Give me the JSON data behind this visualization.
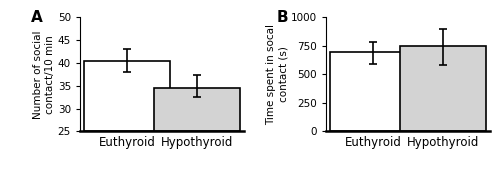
{
  "panel_A": {
    "label": "A",
    "categories": [
      "Euthyroid",
      "Hypothyroid"
    ],
    "values": [
      40.5,
      34.5
    ],
    "errors_upper": [
      2.5,
      2.8
    ],
    "errors_lower": [
      2.5,
      2.0
    ],
    "bar_colors": [
      "white",
      "#d3d3d3"
    ],
    "bar_edgecolor": "black",
    "ylim": [
      25,
      50
    ],
    "yticks": [
      25,
      30,
      35,
      40,
      45,
      50
    ],
    "ylabel": "Number of social\ncontact/10 min",
    "bar_width": 0.55,
    "bar_positions": [
      0.3,
      0.75
    ]
  },
  "panel_B": {
    "label": "B",
    "categories": [
      "Euthyroid",
      "Hypothyroid"
    ],
    "values": [
      695,
      750
    ],
    "errors_upper": [
      85,
      145
    ],
    "errors_lower": [
      100,
      165
    ],
    "bar_colors": [
      "white",
      "#d3d3d3"
    ],
    "bar_edgecolor": "black",
    "ylim": [
      0,
      1000
    ],
    "yticks": [
      0,
      250,
      500,
      750,
      1000
    ],
    "ylabel": "Time spent in socal\ncontact (s)",
    "bar_width": 0.55,
    "bar_positions": [
      0.3,
      0.75
    ]
  },
  "tick_fontsize": 7.5,
  "label_fontsize": 7.5,
  "xlabel_fontsize": 8.5,
  "panel_label_fontsize": 11,
  "capsize": 3,
  "linewidth": 1.2,
  "spine_linewidth": 1.8
}
